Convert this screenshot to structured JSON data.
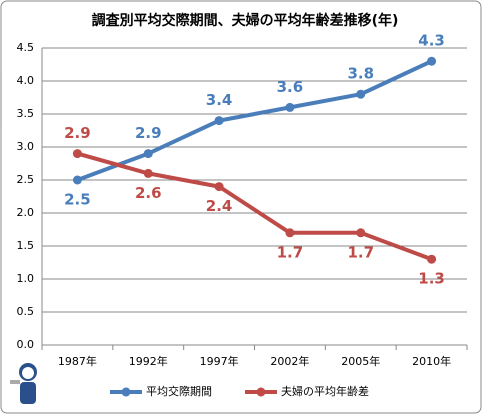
{
  "chart_data": {
    "type": "line",
    "title": "調査別平均交際期間、夫婦の平均年齢差推移(年)",
    "categories": [
      "1987年",
      "1992年",
      "1997年",
      "2002年",
      "2005年",
      "2010年"
    ],
    "series": [
      {
        "name": "平均交際期間",
        "color": "#4a7ebb",
        "values": [
          2.5,
          2.9,
          3.4,
          3.6,
          3.8,
          4.3
        ]
      },
      {
        "name": "夫婦の平均年齢差",
        "color": "#be4b48",
        "values": [
          2.9,
          2.6,
          2.4,
          1.7,
          1.7,
          1.3
        ]
      }
    ],
    "ylim": [
      0,
      4.5
    ],
    "yticks": [
      {
        "value": 0,
        "label": "0.0"
      },
      0.5,
      {
        "value": 1,
        "label": "1.0"
      },
      1.5,
      {
        "value": 2,
        "label": "2.0"
      },
      2.5,
      {
        "value": 3,
        "label": "3.0"
      },
      3.5,
      {
        "value": 4,
        "label": "4.0"
      },
      4.5
    ],
    "grid": true,
    "legend": "bottom"
  }
}
